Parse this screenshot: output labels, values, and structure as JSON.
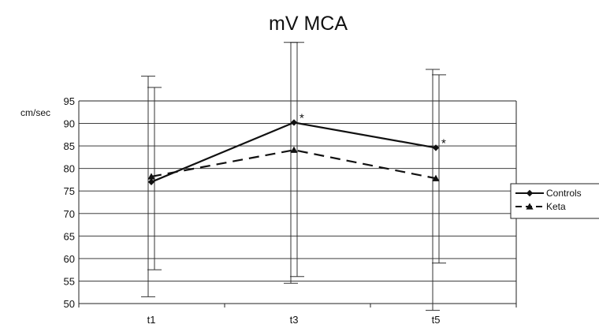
{
  "chart_data": {
    "type": "line",
    "title": "mV MCA",
    "ylabel": "cm/sec",
    "xlabel": "",
    "categories": [
      "t1",
      "t3",
      "t5"
    ],
    "ylim": [
      50,
      95
    ],
    "yticks": [
      50,
      55,
      60,
      65,
      70,
      75,
      80,
      85,
      90,
      95
    ],
    "grid": true,
    "legend_position": "right",
    "series": [
      {
        "name": "Controls",
        "values": [
          77,
          90.2,
          84.6
        ],
        "error_low": [
          51.5,
          54.5,
          48.5
        ],
        "error_high": [
          100.5,
          108,
          102
        ],
        "annotations": [
          "",
          "*",
          "*"
        ],
        "line_style": "solid",
        "marker": "diamond",
        "color": "#111111"
      },
      {
        "name": "Keta",
        "values": [
          78.2,
          84.1,
          77.8
        ],
        "error_low": [
          57.5,
          56,
          59
        ],
        "error_high": [
          98,
          108,
          100.8
        ],
        "annotations": [
          "",
          "",
          ""
        ],
        "line_style": "dashed",
        "marker": "triangle",
        "color": "#111111"
      }
    ]
  }
}
